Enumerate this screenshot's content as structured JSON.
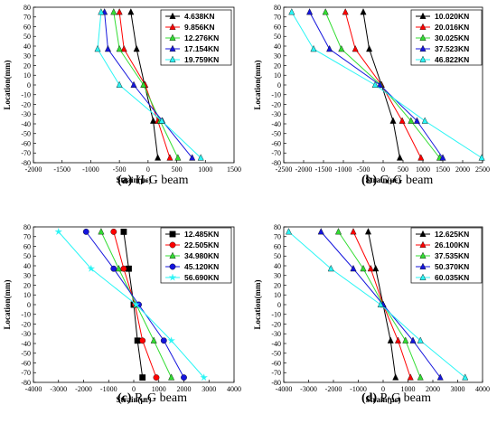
{
  "colors": {
    "black": "#000000",
    "red": "#ff0000",
    "green": "#33dd33",
    "blue": "#1515dd",
    "cyan": "#2af5f5",
    "axis": "#000000"
  },
  "chart_data": [
    {
      "type": "line",
      "caption_letter": "(a)",
      "caption_text": " H-G beam",
      "xlabel": "Strain(με)",
      "ylabel": "Location(mm)",
      "xlim": [
        -2000,
        1500
      ],
      "xticks": [
        -2000,
        -1500,
        -1000,
        -500,
        0,
        500,
        1000,
        1500
      ],
      "ylim": [
        -80,
        80
      ],
      "yticks": [
        -80,
        -70,
        -60,
        -50,
        -40,
        -30,
        -20,
        -10,
        0,
        10,
        20,
        30,
        40,
        50,
        60,
        70,
        80
      ],
      "legend_position": "top-right",
      "series": [
        {
          "name": "4.638KN",
          "color": "black",
          "marker": "triangle",
          "points": [
            [
              -300,
              75
            ],
            [
              -200,
              37
            ],
            [
              -60,
              0
            ],
            [
              90,
              -37
            ],
            [
              170,
              -75
            ]
          ]
        },
        {
          "name": "9.856KN",
          "color": "red",
          "marker": "triangle",
          "points": [
            [
              -500,
              75
            ],
            [
              -420,
              37
            ],
            [
              -50,
              0
            ],
            [
              170,
              -37
            ],
            [
              380,
              -75
            ]
          ]
        },
        {
          "name": "12.276KN",
          "color": "green",
          "marker": "triangle",
          "points": [
            [
              -600,
              75
            ],
            [
              -500,
              37
            ],
            [
              -80,
              0
            ],
            [
              210,
              -37
            ],
            [
              520,
              -75
            ]
          ]
        },
        {
          "name": "17.154KN",
          "color": "blue",
          "marker": "triangle",
          "points": [
            [
              -760,
              75
            ],
            [
              -700,
              37
            ],
            [
              -250,
              0
            ],
            [
              250,
              -37
            ],
            [
              770,
              -75
            ]
          ]
        },
        {
          "name": "19.759KN",
          "color": "cyan",
          "marker": "triangle",
          "points": [
            [
              -820,
              75
            ],
            [
              -880,
              37
            ],
            [
              -500,
              0
            ],
            [
              240,
              -37
            ],
            [
              920,
              -75
            ]
          ]
        }
      ]
    },
    {
      "type": "line",
      "caption_letter": "(b)",
      "caption_text": " G-G beam",
      "xlabel": "Strain(με)",
      "ylabel": "Location(mm)",
      "xlim": [
        -2500,
        2500
      ],
      "xticks": [
        -2500,
        -2000,
        -1500,
        -1000,
        -500,
        0,
        500,
        1000,
        1500,
        2000,
        2500
      ],
      "ylim": [
        -80,
        80
      ],
      "yticks": [
        -80,
        -70,
        -60,
        -50,
        -40,
        -30,
        -20,
        -10,
        0,
        10,
        20,
        30,
        40,
        50,
        60,
        70,
        80
      ],
      "legend_position": "top-right",
      "series": [
        {
          "name": "10.020KN",
          "color": "black",
          "marker": "triangle",
          "points": [
            [
              -500,
              75
            ],
            [
              -350,
              37
            ],
            [
              -40,
              0
            ],
            [
              250,
              -37
            ],
            [
              420,
              -75
            ]
          ]
        },
        {
          "name": "20.016KN",
          "color": "red",
          "marker": "triangle",
          "points": [
            [
              -950,
              75
            ],
            [
              -700,
              37
            ],
            [
              -40,
              0
            ],
            [
              480,
              -37
            ],
            [
              950,
              -75
            ]
          ]
        },
        {
          "name": "30.025KN",
          "color": "green",
          "marker": "triangle",
          "points": [
            [
              -1450,
              75
            ],
            [
              -1050,
              37
            ],
            [
              -60,
              0
            ],
            [
              700,
              -37
            ],
            [
              1420,
              -75
            ]
          ]
        },
        {
          "name": "37.523KN",
          "color": "blue",
          "marker": "triangle",
          "points": [
            [
              -1850,
              75
            ],
            [
              -1350,
              37
            ],
            [
              -80,
              0
            ],
            [
              850,
              -37
            ],
            [
              1500,
              -75
            ]
          ]
        },
        {
          "name": "46.822KN",
          "color": "cyan",
          "marker": "triangle",
          "points": [
            [
              -2300,
              75
            ],
            [
              -1750,
              37
            ],
            [
              -200,
              0
            ],
            [
              1050,
              -37
            ],
            [
              2480,
              -75
            ]
          ]
        }
      ]
    },
    {
      "type": "line",
      "caption_letter": "(c)",
      "caption_text": " R-G beam",
      "xlabel": "Strain(με)",
      "ylabel": "Location(mm)",
      "xlim": [
        -4000,
        4000
      ],
      "xticks": [
        -4000,
        -3000,
        -2000,
        -1000,
        0,
        1000,
        2000,
        3000,
        4000
      ],
      "ylim": [
        -80,
        80
      ],
      "yticks": [
        -80,
        -70,
        -60,
        -50,
        -40,
        -30,
        -20,
        -10,
        0,
        10,
        20,
        30,
        40,
        50,
        60,
        70,
        80
      ],
      "legend_position": "top-right",
      "series": [
        {
          "name": "12.485KN",
          "color": "black",
          "marker": "square",
          "points": [
            [
              -400,
              75
            ],
            [
              -200,
              37
            ],
            [
              0,
              0
            ],
            [
              150,
              -37
            ],
            [
              350,
              -75
            ]
          ]
        },
        {
          "name": "22.505KN",
          "color": "red",
          "marker": "circle",
          "points": [
            [
              -800,
              75
            ],
            [
              -400,
              37
            ],
            [
              50,
              0
            ],
            [
              350,
              -37
            ],
            [
              900,
              -75
            ]
          ]
        },
        {
          "name": "34.980KN",
          "color": "green",
          "marker": "triangle",
          "points": [
            [
              -1300,
              75
            ],
            [
              -600,
              37
            ],
            [
              100,
              0
            ],
            [
              800,
              -37
            ],
            [
              1500,
              -75
            ]
          ]
        },
        {
          "name": "45.120KN",
          "color": "blue",
          "marker": "circle",
          "points": [
            [
              -1900,
              75
            ],
            [
              -800,
              37
            ],
            [
              200,
              0
            ],
            [
              1200,
              -37
            ],
            [
              2000,
              -75
            ]
          ]
        },
        {
          "name": "56.690KN",
          "color": "cyan",
          "marker": "star",
          "points": [
            [
              -3000,
              75
            ],
            [
              -1700,
              37
            ],
            [
              100,
              0
            ],
            [
              1500,
              -37
            ],
            [
              2800,
              -75
            ]
          ]
        }
      ]
    },
    {
      "type": "line",
      "caption_letter": "(d)",
      "caption_text": " P-G beam",
      "xlabel": "Strain(με)",
      "ylabel": "Location(mm)",
      "xlim": [
        -4000,
        4000
      ],
      "xticks": [
        -4000,
        -3000,
        -2000,
        -1000,
        0,
        1000,
        2000,
        3000,
        4000
      ],
      "ylim": [
        -80,
        80
      ],
      "yticks": [
        -80,
        -70,
        -60,
        -50,
        -40,
        -30,
        -20,
        -10,
        0,
        10,
        20,
        30,
        40,
        50,
        60,
        70,
        80
      ],
      "legend_position": "top-right",
      "series": [
        {
          "name": "12.625KN",
          "color": "black",
          "marker": "triangle",
          "points": [
            [
              -600,
              75
            ],
            [
              -300,
              37
            ],
            [
              0,
              0
            ],
            [
              300,
              -37
            ],
            [
              500,
              -75
            ]
          ]
        },
        {
          "name": "26.100KN",
          "color": "red",
          "marker": "triangle",
          "points": [
            [
              -1200,
              75
            ],
            [
              -500,
              37
            ],
            [
              0,
              0
            ],
            [
              600,
              -37
            ],
            [
              1100,
              -75
            ]
          ]
        },
        {
          "name": "37.535KN",
          "color": "green",
          "marker": "triangle",
          "points": [
            [
              -1800,
              75
            ],
            [
              -800,
              37
            ],
            [
              0,
              0
            ],
            [
              900,
              -37
            ],
            [
              1500,
              -75
            ]
          ]
        },
        {
          "name": "50.370KN",
          "color": "blue",
          "marker": "triangle",
          "points": [
            [
              -2500,
              75
            ],
            [
              -1200,
              37
            ],
            [
              0,
              0
            ],
            [
              1200,
              -37
            ],
            [
              2300,
              -75
            ]
          ]
        },
        {
          "name": "60.035KN",
          "color": "cyan",
          "marker": "triangle",
          "points": [
            [
              -3800,
              75
            ],
            [
              -2100,
              37
            ],
            [
              -100,
              0
            ],
            [
              1500,
              -37
            ],
            [
              3300,
              -75
            ]
          ]
        }
      ]
    }
  ]
}
